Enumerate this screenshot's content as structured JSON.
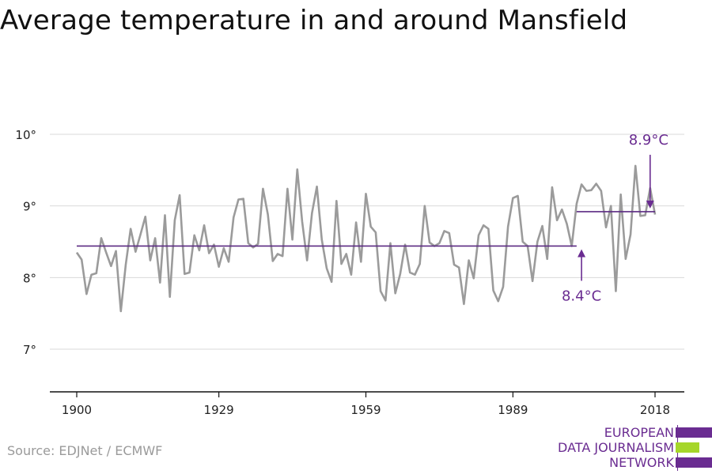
{
  "title": "Average temperature in and around Mansfield",
  "source": "Source: EDJNet / ECMWF",
  "logo": {
    "lines": [
      "EUROPEAN",
      "DATA JOURNALISM",
      "NETWORK"
    ],
    "colors": {
      "purple": "#6a2c91",
      "green": "#a6d62a"
    }
  },
  "colors": {
    "series": "#9b9b9b",
    "reference": "#5b2a83",
    "annotation": "#6a2c91",
    "grid": "#d9d9d9",
    "axis": "#111111"
  },
  "chart_data": {
    "type": "line",
    "title": "Average temperature in and around Mansfield",
    "xlabel": "",
    "ylabel": "",
    "xlim": [
      1900,
      2018
    ],
    "ylim": [
      6.5,
      10.3
    ],
    "x_ticks": [
      1900,
      1929,
      1959,
      1989,
      2018
    ],
    "x_tick_labels": [
      "1900",
      "1929",
      "1959",
      "1989",
      "2018"
    ],
    "y_ticks": [
      7,
      8,
      9,
      10
    ],
    "y_tick_labels": [
      "7°",
      "8°",
      "9°",
      "10°"
    ],
    "grid": true,
    "series": [
      {
        "x": [
          1900,
          1901,
          1902,
          1903,
          1904,
          1905,
          1906,
          1907,
          1908,
          1909,
          1910,
          1911,
          1912,
          1913,
          1914,
          1915,
          1916,
          1917,
          1918,
          1919,
          1920,
          1921,
          1922,
          1923,
          1924,
          1925,
          1926,
          1927,
          1928,
          1929,
          1930,
          1931,
          1932,
          1933,
          1934,
          1935,
          1936,
          1937,
          1938,
          1939,
          1940,
          1941,
          1942,
          1943,
          1944,
          1945,
          1946,
          1947,
          1948,
          1949,
          1950,
          1951,
          1952,
          1953,
          1954,
          1955,
          1956,
          1957,
          1958,
          1959,
          1960,
          1961,
          1962,
          1963,
          1964,
          1965,
          1966,
          1967,
          1968,
          1969,
          1970,
          1971,
          1972,
          1973,
          1974,
          1975,
          1976,
          1977,
          1978,
          1979,
          1980,
          1981,
          1982,
          1983,
          1984,
          1985,
          1986,
          1987,
          1988,
          1989,
          1990,
          1991,
          1992,
          1993,
          1994,
          1995,
          1996,
          1997,
          1998,
          1999,
          2000,
          2001,
          2002,
          2003,
          2004,
          2005,
          2006,
          2007,
          2008,
          2009,
          2010,
          2011,
          2012,
          2013,
          2014,
          2015,
          2016,
          2017,
          2018
        ],
        "y": [
          8.35,
          8.25,
          7.77,
          8.04,
          8.06,
          8.55,
          8.35,
          8.16,
          8.37,
          7.53,
          8.18,
          8.68,
          8.36,
          8.6,
          8.85,
          8.24,
          8.55,
          7.93,
          8.87,
          7.73,
          8.8,
          9.15,
          8.05,
          8.07,
          8.59,
          8.38,
          8.73,
          8.34,
          8.46,
          8.15,
          8.41,
          8.22,
          8.84,
          9.09,
          9.1,
          8.48,
          8.42,
          8.47,
          9.24,
          8.88,
          8.23,
          8.33,
          8.3,
          9.24,
          8.53,
          9.51,
          8.78,
          8.24,
          8.9,
          9.27,
          8.53,
          8.13,
          7.94,
          9.07,
          8.19,
          8.33,
          8.04,
          8.77,
          8.22,
          9.17,
          8.71,
          8.63,
          7.81,
          7.68,
          8.48,
          7.78,
          8.05,
          8.46,
          8.07,
          8.04,
          8.19,
          9.0,
          8.49,
          8.44,
          8.48,
          8.65,
          8.62,
          8.18,
          8.14,
          7.63,
          8.24,
          7.99,
          8.59,
          8.73,
          8.68,
          7.82,
          7.67,
          7.87,
          8.71,
          9.11,
          9.14,
          8.5,
          8.44,
          7.95,
          8.5,
          8.72,
          8.26,
          9.26,
          8.8,
          8.95,
          8.75,
          8.44,
          9.03,
          9.3,
          9.21,
          9.22,
          9.31,
          9.21,
          8.7,
          9.0,
          7.81,
          9.16,
          8.26,
          8.6,
          9.56,
          8.86,
          8.87,
          9.25,
          8.88
        ]
      }
    ],
    "reference_lines": [
      {
        "x_start": 1900,
        "x_end": 2002,
        "value": 8.44
      },
      {
        "x_start": 2002,
        "x_end": 2018,
        "value": 8.92
      }
    ],
    "annotations": [
      {
        "text": "8.4°C",
        "x": 2003,
        "y": 8.44,
        "arrow": "up",
        "label_position": "below"
      },
      {
        "text": "8.9°C",
        "x": 2017,
        "y": 8.92,
        "arrow": "down",
        "label_position": "above"
      }
    ]
  }
}
